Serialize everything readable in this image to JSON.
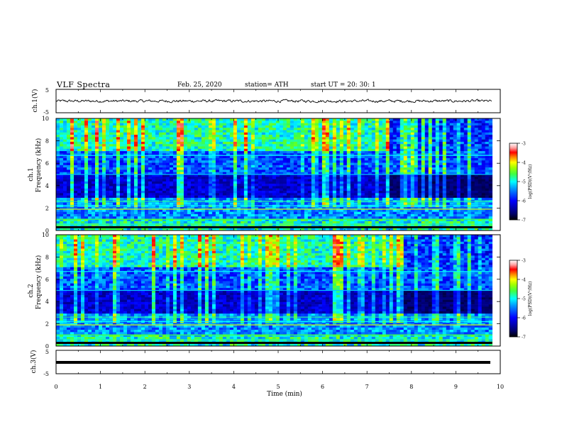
{
  "header": {
    "title": "VLF  Spectra",
    "date": "Feb. 25, 2020",
    "station": "station= ATH",
    "start": "start  UT  =   20: 30: 1"
  },
  "chart_data": {
    "type": "heatmap",
    "x_axis": {
      "label": "Time  (min)",
      "range": [
        0,
        10
      ],
      "ticks": [
        "0",
        "1",
        "2",
        "3",
        "4",
        "5",
        "6",
        "7",
        "8",
        "9",
        "10"
      ],
      "data_end_min": 9.82
    },
    "panels": [
      {
        "id": "ch1_waveform",
        "type": "line",
        "ylabel": "ch.1(V)",
        "yticks": [
          "5",
          "-5"
        ],
        "ylim": [
          -5,
          5
        ],
        "amplitude_note": "noisy waveform near 0 V, roughly ±0.5 V"
      },
      {
        "id": "ch1_spectrogram",
        "type": "heatmap",
        "ylabel_top": "ch.1",
        "ylabel": "Frequency  (kHz)",
        "yticks": [
          "10",
          "8",
          "6",
          "4",
          "2",
          "0"
        ],
        "ylim": [
          0,
          10
        ],
        "colorbar": {
          "label": "log(PSD)(V²/Hz)",
          "ticks": [
            "-3",
            "-4",
            "-5",
            "-6",
            "-7"
          ],
          "range": [
            -7,
            -3
          ]
        },
        "features": {
          "high_band_green_to_min": 7.85,
          "spherics_density": "dense",
          "step_change_min": 7.5
        }
      },
      {
        "id": "ch2_spectrogram",
        "type": "heatmap",
        "ylabel_top": "ch.2",
        "ylabel": "Frequency  (kHz)",
        "yticks": [
          "10",
          "8",
          "6",
          "4",
          "2",
          "0"
        ],
        "ylim": [
          0,
          10
        ],
        "colorbar": {
          "label": "log(PSD)(V²/Hz)",
          "ticks": [
            "-3",
            "-4",
            "-5",
            "-6",
            "-7"
          ],
          "range": [
            -7,
            -3
          ]
        },
        "features": {
          "high_band_green_to_min": 7.85,
          "spherics_density": "dense",
          "step_change_min": 7.85
        }
      },
      {
        "id": "ch3_waveform",
        "type": "line",
        "ylabel": "ch.3(V)",
        "yticks": [
          "5",
          "-5"
        ],
        "ylim": [
          -5,
          5
        ],
        "amplitude_note": "thick flat trace near -2 V"
      }
    ],
    "colors": {
      "colormap": [
        "#000080",
        "#0000ff",
        "#0080ff",
        "#00ffff",
        "#40ff80",
        "#ffff00",
        "#ff8000",
        "#ff0000",
        "#ffffff"
      ]
    }
  }
}
